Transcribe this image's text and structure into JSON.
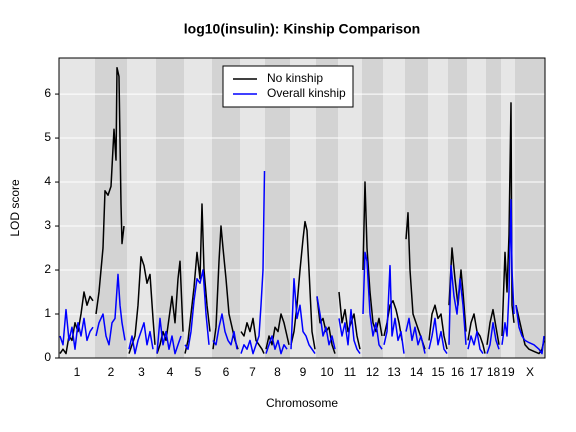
{
  "chart_data": {
    "type": "line",
    "title": "log10(insulin): Kinship Comparison",
    "xlabel": "Chromosome",
    "ylabel": "LOD score",
    "categories": [
      "1",
      "2",
      "3",
      "4",
      "5",
      "6",
      "7",
      "8",
      "9",
      "10",
      "11",
      "12",
      "13",
      "14",
      "15",
      "16",
      "17",
      "18",
      "19",
      "X"
    ],
    "category_bounds": [
      0,
      36,
      68,
      97,
      125,
      153,
      181,
      206,
      231,
      257,
      279,
      303,
      324,
      346,
      369,
      389,
      408,
      427,
      442,
      456,
      486
    ],
    "xlim": [
      0,
      486
    ],
    "ylim": [
      0,
      6.82
    ],
    "yticks": [
      0,
      1,
      2,
      3,
      4,
      5,
      6
    ],
    "grid": true,
    "legend": "top",
    "series": [
      {
        "name": "No kinship",
        "color": "#000000",
        "x": [
          1,
          4,
          7,
          10,
          13,
          16,
          19,
          22,
          25,
          28,
          31,
          34,
          37,
          40,
          44,
          46,
          49,
          52,
          55,
          57,
          58,
          60,
          62,
          63,
          65,
          70,
          73,
          76,
          79,
          82,
          85,
          88,
          91,
          94,
          96,
          98,
          101,
          104,
          107,
          110,
          113,
          116,
          119,
          121,
          124,
          126,
          129,
          132,
          135,
          138,
          141,
          143,
          145,
          148,
          151,
          154,
          157,
          160,
          162,
          164,
          167,
          170,
          173,
          176,
          179,
          182,
          185,
          188,
          191,
          194,
          197,
          200,
          203,
          205,
          207,
          210,
          213,
          216,
          219,
          222,
          225,
          228,
          230,
          232,
          235,
          238,
          241,
          244,
          246,
          248,
          250,
          253,
          256,
          258,
          261,
          264,
          267,
          270,
          273,
          276,
          280,
          283,
          286,
          289,
          292,
          295,
          298,
          301,
          304,
          306,
          308,
          311,
          314,
          317,
          320,
          323,
          325,
          328,
          331,
          334,
          337,
          340,
          343,
          347,
          349,
          351,
          354,
          357,
          360,
          363,
          366,
          370,
          373,
          376,
          379,
          382,
          385,
          388,
          390,
          393,
          396,
          399,
          402,
          404,
          407,
          409,
          412,
          415,
          418,
          421,
          424,
          426,
          428,
          431,
          434,
          437,
          440,
          443,
          446,
          448,
          450,
          452,
          453,
          455,
          457,
          460,
          463,
          466,
          470,
          475,
          480,
          483,
          485
        ],
        "values": [
          0.1,
          0.2,
          0.1,
          0.5,
          0.4,
          0.8,
          0.6,
          1.0,
          1.5,
          1.2,
          1.4,
          1.3,
          1.0,
          1.5,
          2.5,
          3.8,
          3.7,
          3.9,
          5.2,
          4.5,
          6.6,
          6.4,
          3.5,
          2.6,
          3.0,
          0.1,
          0.3,
          0.5,
          1.2,
          2.3,
          2.1,
          1.7,
          1.9,
          0.9,
          0.3,
          0.1,
          0.3,
          0.6,
          0.4,
          0.9,
          1.4,
          0.8,
          1.8,
          2.2,
          0.6,
          0.1,
          0.4,
          1.0,
          1.6,
          2.4,
          1.8,
          3.5,
          2.0,
          1.2,
          0.6,
          0.2,
          0.7,
          2.2,
          3.0,
          2.5,
          1.8,
          1.0,
          0.7,
          0.4,
          0.2,
          0.6,
          0.5,
          0.8,
          0.6,
          0.9,
          0.4,
          0.3,
          0.2,
          0.1,
          0.2,
          0.5,
          0.3,
          0.7,
          0.6,
          1.0,
          0.8,
          0.5,
          0.3,
          0.3,
          0.6,
          1.2,
          2.0,
          2.7,
          3.1,
          2.9,
          2.0,
          0.6,
          0.2,
          1.4,
          0.8,
          0.9,
          0.6,
          0.7,
          0.3,
          0.1,
          1.5,
          0.8,
          1.1,
          0.6,
          0.8,
          1.0,
          0.5,
          0.2,
          2.0,
          4.0,
          2.5,
          1.5,
          0.8,
          0.6,
          0.9,
          0.5,
          0.5,
          0.8,
          1.2,
          1.3,
          1.1,
          0.8,
          0.4,
          2.7,
          3.3,
          2.0,
          1.0,
          0.8,
          0.6,
          0.4,
          0.2,
          0.4,
          1.0,
          1.2,
          0.9,
          1.0,
          0.5,
          0.2,
          1.2,
          2.5,
          1.8,
          1.2,
          2.0,
          1.5,
          0.6,
          0.4,
          0.8,
          1.0,
          0.6,
          0.5,
          0.3,
          0.1,
          0.3,
          0.8,
          1.1,
          0.7,
          0.3,
          0.5,
          2.4,
          1.5,
          2.8,
          5.8,
          1.2,
          0.8,
          1.2,
          0.9,
          0.6,
          0.3,
          0.2,
          0.15,
          0.1,
          0.2,
          0.4
        ]
      },
      {
        "name": "Overall kinship",
        "color": "#0000ff",
        "x": [
          1,
          4,
          7,
          10,
          13,
          16,
          19,
          22,
          25,
          28,
          31,
          34,
          37,
          40,
          44,
          47,
          50,
          53,
          56,
          59,
          61,
          63,
          66,
          70,
          73,
          76,
          79,
          82,
          85,
          88,
          91,
          94,
          98,
          101,
          104,
          107,
          110,
          113,
          116,
          119,
          122,
          126,
          129,
          132,
          135,
          138,
          141,
          144,
          147,
          150,
          154,
          157,
          160,
          163,
          166,
          169,
          172,
          175,
          178,
          182,
          185,
          188,
          191,
          194,
          197,
          200,
          202,
          204,
          205.5,
          207,
          210,
          213,
          216,
          219,
          222,
          225,
          228,
          232,
          235,
          238,
          241,
          244,
          247,
          250,
          253,
          256,
          258,
          261,
          264,
          267,
          270,
          273,
          276,
          280,
          283,
          286,
          289,
          292,
          295,
          298,
          301,
          304,
          306,
          308,
          311,
          314,
          317,
          320,
          323,
          325,
          328,
          331,
          333,
          336,
          339,
          342,
          345,
          347,
          350,
          353,
          356,
          359,
          362,
          366,
          370,
          373,
          376,
          379,
          382,
          385,
          388,
          390,
          392,
          395,
          398,
          401,
          404,
          407,
          409,
          412,
          415,
          418,
          421,
          424,
          428,
          431,
          434,
          437,
          440,
          443,
          446,
          448,
          450,
          452,
          453,
          455,
          457,
          460,
          463,
          466,
          470,
          475,
          480,
          483,
          485
        ],
        "values": [
          0.5,
          0.3,
          1.1,
          0.4,
          0.7,
          0.2,
          0.8,
          0.5,
          0.9,
          0.4,
          0.6,
          0.7,
          0.5,
          0.8,
          1.0,
          0.5,
          0.3,
          0.8,
          0.9,
          1.9,
          1.2,
          0.8,
          0.4,
          0.2,
          0.5,
          0.1,
          0.4,
          0.6,
          0.8,
          0.3,
          0.6,
          0.2,
          0.1,
          0.9,
          0.3,
          0.6,
          0.2,
          0.5,
          0.1,
          0.3,
          0.5,
          0.3,
          0.2,
          0.6,
          1.3,
          1.8,
          1.7,
          2.0,
          1.0,
          0.3,
          0.4,
          0.3,
          0.7,
          1.0,
          0.6,
          0.4,
          0.3,
          0.6,
          0.2,
          0.1,
          0.3,
          0.2,
          0.4,
          0.1,
          0.3,
          0.5,
          1.2,
          2.0,
          4.25,
          0.1,
          0.3,
          0.5,
          0.2,
          0.4,
          0.1,
          0.3,
          0.2,
          0.2,
          1.8,
          0.9,
          1.2,
          0.6,
          0.5,
          0.3,
          0.2,
          0.1,
          1.4,
          1.0,
          0.5,
          0.7,
          0.3,
          0.5,
          0.2,
          0.9,
          0.5,
          0.8,
          0.3,
          1.1,
          0.4,
          0.2,
          0.1,
          1.0,
          2.4,
          2.2,
          1.0,
          0.5,
          0.8,
          0.3,
          0.2,
          0.3,
          0.6,
          2.1,
          0.5,
          0.9,
          0.4,
          0.6,
          0.1,
          0.6,
          0.9,
          0.4,
          0.7,
          0.3,
          0.5,
          0.1,
          0.2,
          0.5,
          0.9,
          0.3,
          0.6,
          0.2,
          0.1,
          0.3,
          2.1,
          1.4,
          1.0,
          1.8,
          1.2,
          0.3,
          0.2,
          0.5,
          0.3,
          0.6,
          0.2,
          0.1,
          0.1,
          0.3,
          0.8,
          0.4,
          0.2,
          0.3,
          0.8,
          0.5,
          1.5,
          3.6,
          2.0,
          1.0,
          1.2,
          0.7,
          0.5,
          0.4,
          0.35,
          0.3,
          0.2,
          0.1,
          0.5
        ]
      }
    ]
  }
}
